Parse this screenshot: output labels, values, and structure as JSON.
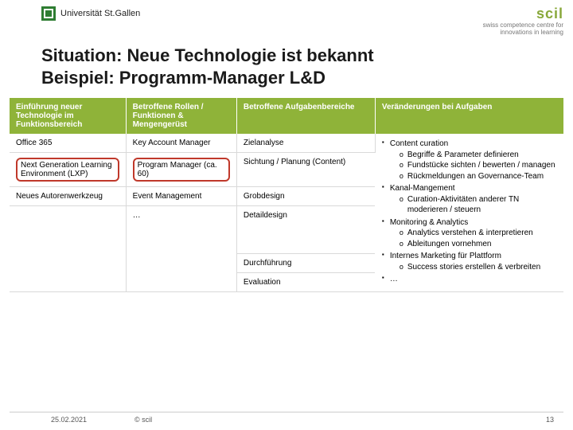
{
  "brand_left": "Universität St.Gallen",
  "brand_right": {
    "name": "scil",
    "tagline1": "swiss competence centre for",
    "tagline2": "innovations in learning"
  },
  "title_line1": "Situation: Neue Technologie ist bekannt",
  "title_line2": "Beispiel: Programm-Manager L&D",
  "headers": {
    "c1": "Einführung neuer Technologie im Funktionsbereich",
    "c2": "Betroffene Rollen / Funktionen & Mengengerüst",
    "c3": "Betroffene Aufgabenbereiche",
    "c4": "Veränderungen bei Aufgaben"
  },
  "rows": {
    "r1c1": "Office 365",
    "r1c2": "Key Account Manager",
    "r1c3": "Zielanalyse",
    "r2c1": "Next Generation Learning Environment (LXP)",
    "r2c2": "Program Manager (ca. 60)",
    "r2c3": "Sichtung / Planung (Content)",
    "r3c1": "Neues Autorenwerkzeug",
    "r3c2": "Event Management",
    "r3c3": "Grobdesign",
    "r4c2": "…",
    "r4c3": "Detaildesign",
    "r5c3": "Durchführung",
    "r6c3": "Evaluation"
  },
  "changes": {
    "b1": "Content curation",
    "b1_1": "Begriffe & Parameter definieren",
    "b1_2": "Fundstücke sichten / bewerten / managen",
    "b1_3": "Rückmeldungen an Governance-Team",
    "b2": "Kanal-Mangement",
    "b2_1": "Curation-Aktivitäten anderer TN moderieren / steuern",
    "b3": "Monitoring & Analytics",
    "b3_1": "Analytics verstehen & interpretieren",
    "b3_2": "Ableitungen vornehmen",
    "b4": "Internes Marketing für Plattform",
    "b4_1": "Success stories erstellen & verbreiten",
    "b5": "…"
  },
  "colors": {
    "header_bg": "#8fb339",
    "highlight_border": "#c0392b"
  },
  "footer": {
    "date": "25.02.2021",
    "copyright": "© scil",
    "page": "13"
  }
}
